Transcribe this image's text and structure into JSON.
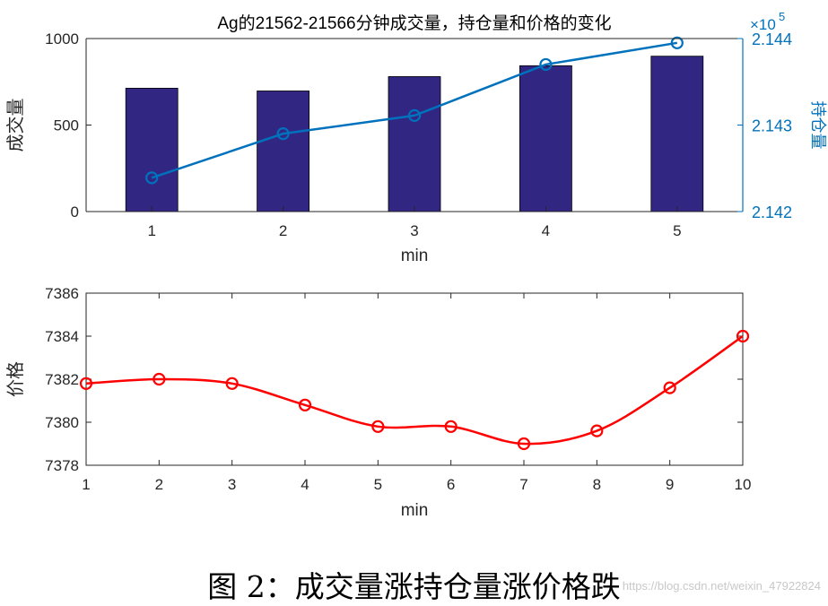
{
  "chart_data": [
    {
      "type": "bar+line",
      "title": "Ag的21562-21566分钟成交量，持仓量和价格的变化",
      "xlabel": "min",
      "ylabel_left": "成交量",
      "ylabel_right": "持仓量",
      "right_axis_exponent": "×10^5",
      "right_axis_exponent_base": "×10",
      "right_axis_exponent_power": "5",
      "categories": [
        "1",
        "2",
        "3",
        "4",
        "5"
      ],
      "x": [
        1,
        2,
        3,
        4,
        5
      ],
      "ylim_left": [
        0,
        1000
      ],
      "yticks_left": [
        0,
        500,
        1000
      ],
      "ylim_right": [
        2.142,
        2.144
      ],
      "yticks_right": [
        2.142,
        2.143,
        2.144
      ],
      "series": [
        {
          "name": "成交量",
          "type": "bar",
          "axis": "left",
          "color": "#312783",
          "values": [
            713,
            697,
            780,
            843,
            898
          ]
        },
        {
          "name": "持仓量",
          "type": "line",
          "axis": "right",
          "color": "#0072bd",
          "marker": "circle",
          "values": [
            2.14239,
            2.1429,
            2.14311,
            2.1437,
            2.14395
          ]
        }
      ]
    },
    {
      "type": "line",
      "title": "",
      "xlabel": "min",
      "ylabel": "价格",
      "xlim": [
        1,
        10
      ],
      "xticks": [
        1,
        2,
        3,
        4,
        5,
        6,
        7,
        8,
        9,
        10
      ],
      "ylim": [
        7378,
        7386
      ],
      "yticks": [
        7378,
        7380,
        7382,
        7384,
        7386
      ],
      "series": [
        {
          "name": "价格",
          "color": "#ff0000",
          "marker": "circle",
          "x": [
            1,
            2,
            3,
            4,
            5,
            6,
            7,
            8,
            9,
            10
          ],
          "values": [
            7381.8,
            7382.0,
            7381.8,
            7380.8,
            7379.8,
            7379.8,
            7379.0,
            7379.6,
            7381.6,
            7384.0
          ]
        }
      ]
    }
  ],
  "caption": "图 2：成交量涨持仓量涨价格跌",
  "watermark": "https://blog.csdn.net/weixin_47922824"
}
